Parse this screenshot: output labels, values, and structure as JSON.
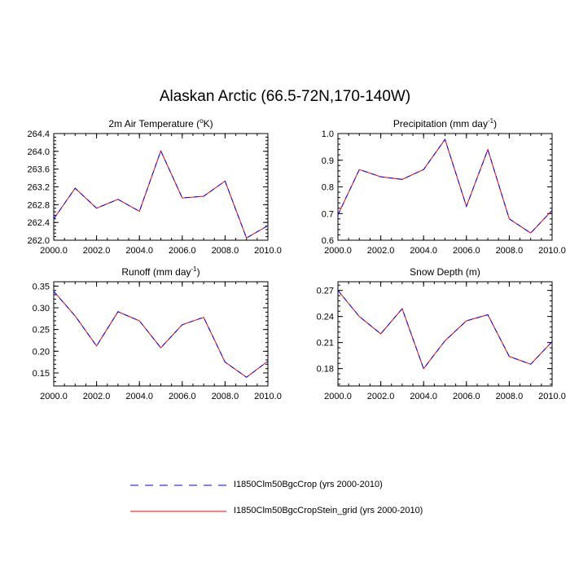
{
  "title": "Alaskan Arctic (66.5-72N,170-140W)",
  "legend": [
    {
      "name": "I1850Clm50BgcCrop (yrs 2000-2010)",
      "color": "#0000ff",
      "dash": true
    },
    {
      "name": "I1850Clm50BgcCropStein_grid (yrs 2000-2010)",
      "color": "#ff0000",
      "dash": false
    }
  ],
  "chart_data": [
    {
      "type": "line",
      "title": "2m Air Temperature (°K)",
      "title_base": "2m Air Temperature (",
      "title_sup": "o",
      "title_end": "K)",
      "x": [
        2000,
        2001,
        2002,
        2003,
        2004,
        2005,
        2006,
        2007,
        2008,
        2009,
        2010
      ],
      "xticks": [
        "2000.0",
        "2002.0",
        "2004.0",
        "2006.0",
        "2008.0",
        "2010.0"
      ],
      "xlim": [
        2000,
        2010
      ],
      "ylim": [
        262.0,
        264.4
      ],
      "yticks": [
        "262.0",
        "262.4",
        "262.8",
        "263.2",
        "263.6",
        "264.0",
        "264.4"
      ],
      "series": [
        {
          "name": "I1850Clm50BgcCrop (yrs 2000-2010)",
          "values": [
            262.48,
            263.17,
            262.72,
            262.92,
            262.65,
            264.01,
            262.95,
            262.99,
            263.33,
            262.05,
            262.33
          ]
        },
        {
          "name": "I1850Clm50BgcCropStein_grid (yrs 2000-2010)",
          "values": [
            262.48,
            263.17,
            262.72,
            262.92,
            262.65,
            264.01,
            262.95,
            262.99,
            263.33,
            262.05,
            262.33
          ]
        }
      ]
    },
    {
      "type": "line",
      "title": "Precipitation (mm day-1)",
      "title_base": "Precipitation (mm day",
      "title_sup": "-1",
      "title_end": ")",
      "x": [
        2000,
        2001,
        2002,
        2003,
        2004,
        2005,
        2006,
        2007,
        2008,
        2009,
        2010
      ],
      "xticks": [
        "2000.0",
        "2002.0",
        "2004.0",
        "2006.0",
        "2008.0",
        "2010.0"
      ],
      "xlim": [
        2000,
        2010
      ],
      "ylim": [
        0.6,
        1.0
      ],
      "yticks": [
        "0.6",
        "0.7",
        "0.8",
        "0.9",
        "1.0"
      ],
      "series": [
        {
          "name": "I1850Clm50BgcCrop (yrs 2000-2010)",
          "values": [
            0.695,
            0.865,
            0.838,
            0.828,
            0.865,
            0.978,
            0.727,
            0.94,
            0.68,
            0.627,
            0.712
          ]
        },
        {
          "name": "I1850Clm50BgcCropStein_grid (yrs 2000-2010)",
          "values": [
            0.695,
            0.865,
            0.838,
            0.828,
            0.865,
            0.978,
            0.727,
            0.94,
            0.68,
            0.627,
            0.712
          ]
        }
      ]
    },
    {
      "type": "line",
      "title": "Runoff (mm day-1)",
      "title_base": "Runoff (mm day",
      "title_sup": "-1",
      "title_end": ")",
      "x": [
        2000,
        2001,
        2002,
        2003,
        2004,
        2005,
        2006,
        2007,
        2008,
        2009,
        2010
      ],
      "xticks": [
        "2000.0",
        "2002.0",
        "2004.0",
        "2006.0",
        "2008.0",
        "2010.0"
      ],
      "xlim": [
        2000,
        2010
      ],
      "ylim": [
        0.12,
        0.36
      ],
      "yticks": [
        "0.15",
        "0.20",
        "0.25",
        "0.30",
        "0.35"
      ],
      "series": [
        {
          "name": "I1850Clm50BgcCrop (yrs 2000-2010)",
          "values": [
            0.338,
            0.281,
            0.212,
            0.291,
            0.27,
            0.208,
            0.261,
            0.278,
            0.175,
            0.14,
            0.177
          ]
        },
        {
          "name": "I1850Clm50BgcCropStein_grid (yrs 2000-2010)",
          "values": [
            0.338,
            0.281,
            0.212,
            0.291,
            0.27,
            0.208,
            0.261,
            0.278,
            0.175,
            0.14,
            0.177
          ]
        }
      ]
    },
    {
      "type": "line",
      "title": "Snow Depth (m)",
      "title_base": "Snow Depth (m)",
      "title_sup": "",
      "title_end": "",
      "x": [
        2000,
        2001,
        2002,
        2003,
        2004,
        2005,
        2006,
        2007,
        2008,
        2009,
        2010
      ],
      "xticks": [
        "2000.0",
        "2002.0",
        "2004.0",
        "2006.0",
        "2008.0",
        "2010.0"
      ],
      "xlim": [
        2000,
        2010
      ],
      "ylim": [
        0.16,
        0.28
      ],
      "yticks": [
        "0.18",
        "0.21",
        "0.24",
        "0.27"
      ],
      "series": [
        {
          "name": "I1850Clm50BgcCrop (yrs 2000-2010)",
          "values": [
            0.27,
            0.24,
            0.22,
            0.249,
            0.18,
            0.212,
            0.235,
            0.242,
            0.194,
            0.185,
            0.211
          ]
        },
        {
          "name": "I1850Clm50BgcCropStein_grid (yrs 2000-2010)",
          "values": [
            0.27,
            0.24,
            0.22,
            0.249,
            0.18,
            0.212,
            0.235,
            0.242,
            0.194,
            0.185,
            0.211
          ]
        }
      ]
    }
  ]
}
